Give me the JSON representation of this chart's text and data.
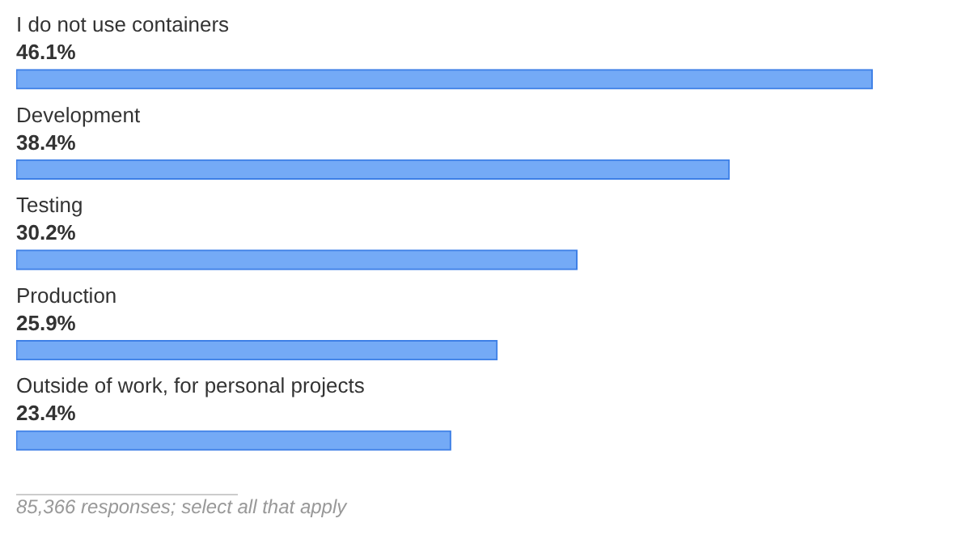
{
  "chart_data": {
    "type": "bar",
    "orientation": "horizontal",
    "categories": [
      "I do not use containers",
      "Development",
      "Testing",
      "Production",
      "Outside of work, for personal projects"
    ],
    "values": [
      46.1,
      38.4,
      30.2,
      25.9,
      23.4
    ],
    "value_labels": [
      "46.1%",
      "38.4%",
      "30.2%",
      "25.9%",
      "23.4%"
    ],
    "color": "#74aaf6",
    "tick_labels": "y",
    "annotations": [
      "85,366 responses; select all that apply"
    ]
  }
}
